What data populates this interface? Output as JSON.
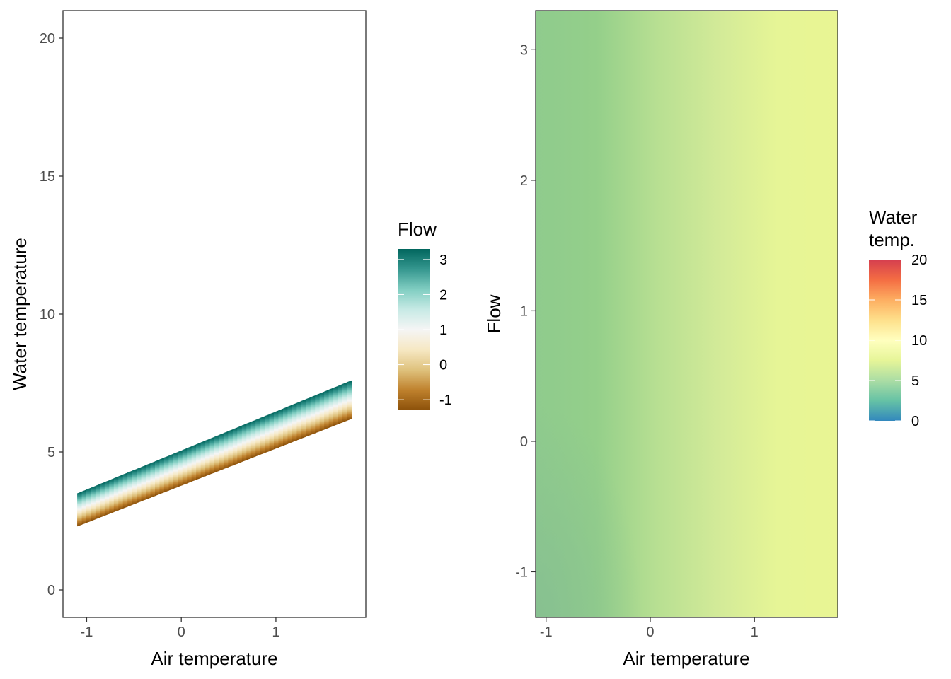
{
  "chart_data": [
    {
      "type": "line",
      "xlabel": "Air temperature",
      "ylabel": "Water temperature",
      "xlim": [
        -1.25,
        1.95
      ],
      "ylim": [
        -1,
        21
      ],
      "xticks": [
        -1,
        0,
        1
      ],
      "yticks": [
        0,
        5,
        10,
        15,
        20
      ],
      "grid": false,
      "color_variable": "Flow",
      "legend": {
        "title": "Flow",
        "position": "right",
        "range": [
          -1.3,
          3.3
        ],
        "ticks": [
          -1,
          0,
          1,
          2,
          3
        ],
        "palette": [
          "#8c510a",
          "#bf812d",
          "#dfc27d",
          "#f6e8c3",
          "#f5f5f5",
          "#c7eae5",
          "#80cdc1",
          "#35978f",
          "#01665e"
        ]
      },
      "series": [
        {
          "flow": -1.3,
          "x": [
            -1.1,
            1.8
          ],
          "y": [
            2.3,
            6.2
          ]
        },
        {
          "flow": 3.3,
          "x": [
            -1.1,
            1.8
          ],
          "y": [
            3.5,
            7.6
          ]
        }
      ]
    },
    {
      "type": "heatmap",
      "xlabel": "Air temperature",
      "ylabel": "Flow",
      "xlim": [
        -1.1,
        1.8
      ],
      "ylim": [
        -1.35,
        3.3
      ],
      "xticks": [
        -1,
        0,
        1
      ],
      "yticks": [
        -1,
        0,
        1,
        2,
        3
      ],
      "grid": false,
      "legend": {
        "title": [
          "Water",
          "temp."
        ],
        "position": "right",
        "range": [
          0,
          20
        ],
        "ticks": [
          0,
          5,
          10,
          15,
          20
        ],
        "palette": [
          "#3288bd",
          "#66c2a5",
          "#abdda4",
          "#e6f598",
          "#ffffbf",
          "#fee08b",
          "#fdae61",
          "#f46d43",
          "#d53e4f"
        ]
      },
      "corner_colors": {
        "x_min_y_min": "#86bf91",
        "x_max_y_min": "#e9f593",
        "x_min_y_max": "#96cd8c",
        "x_max_y_max": "#e6f594"
      },
      "x_gradient": [
        "#8fcb8d",
        "#94cf8a",
        "#b7df92",
        "#d2ea98",
        "#e6f596",
        "#e9f593"
      ]
    }
  ]
}
